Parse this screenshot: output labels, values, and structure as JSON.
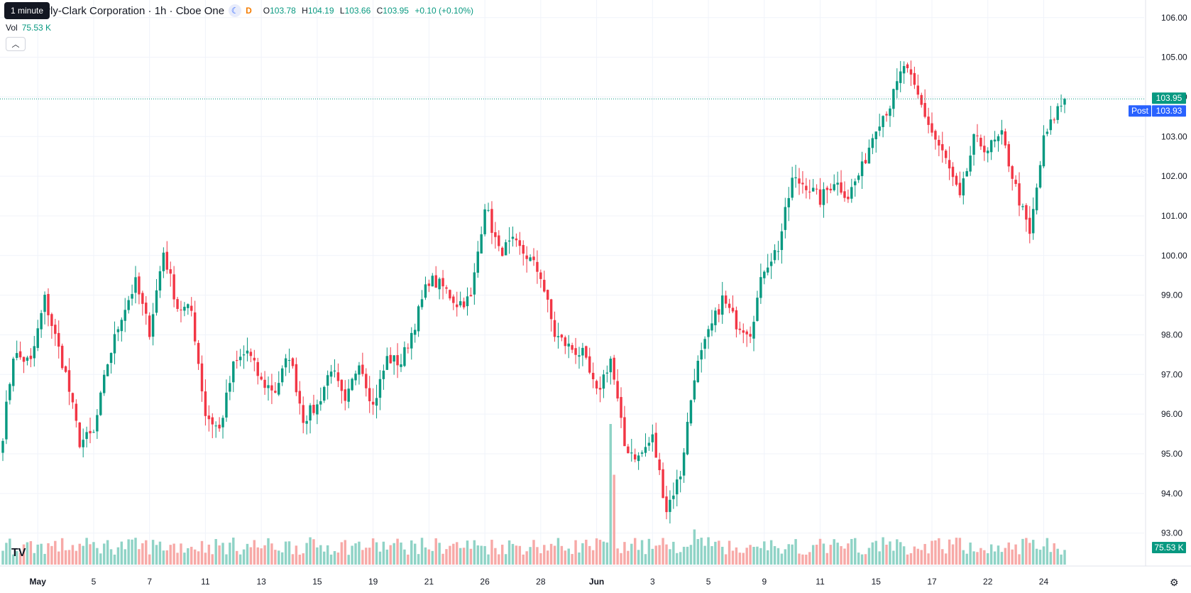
{
  "header": {
    "tooltip": "1 minute",
    "title": "rly-Clark Corporation · 1h · Cboe One",
    "session_icon": "moon-icon",
    "flag": "D",
    "o_label": "O",
    "o": "103.78",
    "h_label": "H",
    "h": "104.19",
    "l_label": "L",
    "l": "103.66",
    "c_label": "C",
    "c": "103.95",
    "change": "+0.10 (+0.10%)",
    "vol_label": "Vol",
    "vol_value": "75.53 K",
    "collapse_icon": "chevron-up-icon"
  },
  "logo": "TV",
  "settings_icon": "gear-icon",
  "colors": {
    "up": "#089981",
    "down": "#f23645",
    "vol_up": "#8fd3c6",
    "vol_down": "#f7a9a7",
    "post": "#2962ff",
    "grid": "#f0f3fa"
  },
  "chart_data": {
    "type": "candlestick",
    "ylim": [
      92.6,
      106.3
    ],
    "y_ticks": [
      "106.00",
      "105.00",
      "104.00",
      "103.00",
      "102.00",
      "101.00",
      "100.00",
      "99.00",
      "98.00",
      "97.00",
      "96.00",
      "95.00",
      "94.00",
      "93.00"
    ],
    "x_ticks": [
      "May",
      "5",
      "7",
      "11",
      "13",
      "15",
      "19",
      "21",
      "26",
      "28",
      "Jun",
      "3",
      "5",
      "9",
      "11",
      "15",
      "17",
      "22",
      "24"
    ],
    "last_price_label": "103.95",
    "post_label": "Post",
    "post_price": "103.93",
    "volume_label": "75.53 K",
    "anchors": [
      [
        0,
        95.5
      ],
      [
        3,
        97.5
      ],
      [
        8,
        97.3
      ],
      [
        12,
        98.9
      ],
      [
        18,
        97.0
      ],
      [
        22,
        95.3
      ],
      [
        26,
        95.5
      ],
      [
        30,
        97.3
      ],
      [
        34,
        98.5
      ],
      [
        38,
        99.3
      ],
      [
        42,
        98.1
      ],
      [
        46,
        100.1
      ],
      [
        50,
        98.7
      ],
      [
        54,
        98.6
      ],
      [
        58,
        96.0
      ],
      [
        62,
        95.6
      ],
      [
        66,
        97.2
      ],
      [
        70,
        97.6
      ],
      [
        74,
        96.8
      ],
      [
        78,
        96.6
      ],
      [
        82,
        97.5
      ],
      [
        86,
        95.9
      ],
      [
        90,
        96.2
      ],
      [
        94,
        97.2
      ],
      [
        98,
        96.2
      ],
      [
        102,
        97.4
      ],
      [
        106,
        96.2
      ],
      [
        110,
        97.4
      ],
      [
        114,
        97.3
      ],
      [
        118,
        98.3
      ],
      [
        122,
        99.4
      ],
      [
        126,
        99.2
      ],
      [
        130,
        98.8
      ],
      [
        134,
        98.9
      ],
      [
        138,
        101.3
      ],
      [
        142,
        100.1
      ],
      [
        146,
        100.3
      ],
      [
        150,
        100.0
      ],
      [
        154,
        99.5
      ],
      [
        158,
        98.0
      ],
      [
        162,
        97.7
      ],
      [
        166,
        97.5
      ],
      [
        170,
        96.5
      ],
      [
        174,
        97.4
      ],
      [
        178,
        95.2
      ],
      [
        182,
        94.9
      ],
      [
        186,
        95.4
      ],
      [
        190,
        93.6
      ],
      [
        194,
        94.5
      ],
      [
        198,
        97.0
      ],
      [
        202,
        98.0
      ],
      [
        206,
        98.9
      ],
      [
        210,
        98.3
      ],
      [
        214,
        98.1
      ],
      [
        218,
        99.7
      ],
      [
        222,
        100.2
      ],
      [
        226,
        101.9
      ],
      [
        230,
        101.8
      ],
      [
        234,
        101.4
      ],
      [
        238,
        101.9
      ],
      [
        242,
        101.5
      ],
      [
        246,
        102.2
      ],
      [
        250,
        103.3
      ],
      [
        254,
        103.8
      ],
      [
        258,
        104.8
      ],
      [
        262,
        104.0
      ],
      [
        266,
        103.1
      ],
      [
        270,
        102.4
      ],
      [
        274,
        101.4
      ],
      [
        278,
        102.9
      ],
      [
        282,
        102.7
      ],
      [
        286,
        103.0
      ],
      [
        290,
        101.7
      ],
      [
        294,
        100.5
      ],
      [
        298,
        102.9
      ],
      [
        302,
        103.7
      ],
      [
        304,
        103.9
      ]
    ],
    "volume_spikes": [
      [
        174,
        3.6
      ],
      [
        175,
        2.3
      ],
      [
        188,
        0.5
      ],
      [
        198,
        0.9
      ],
      [
        202,
        0.7
      ]
    ]
  }
}
